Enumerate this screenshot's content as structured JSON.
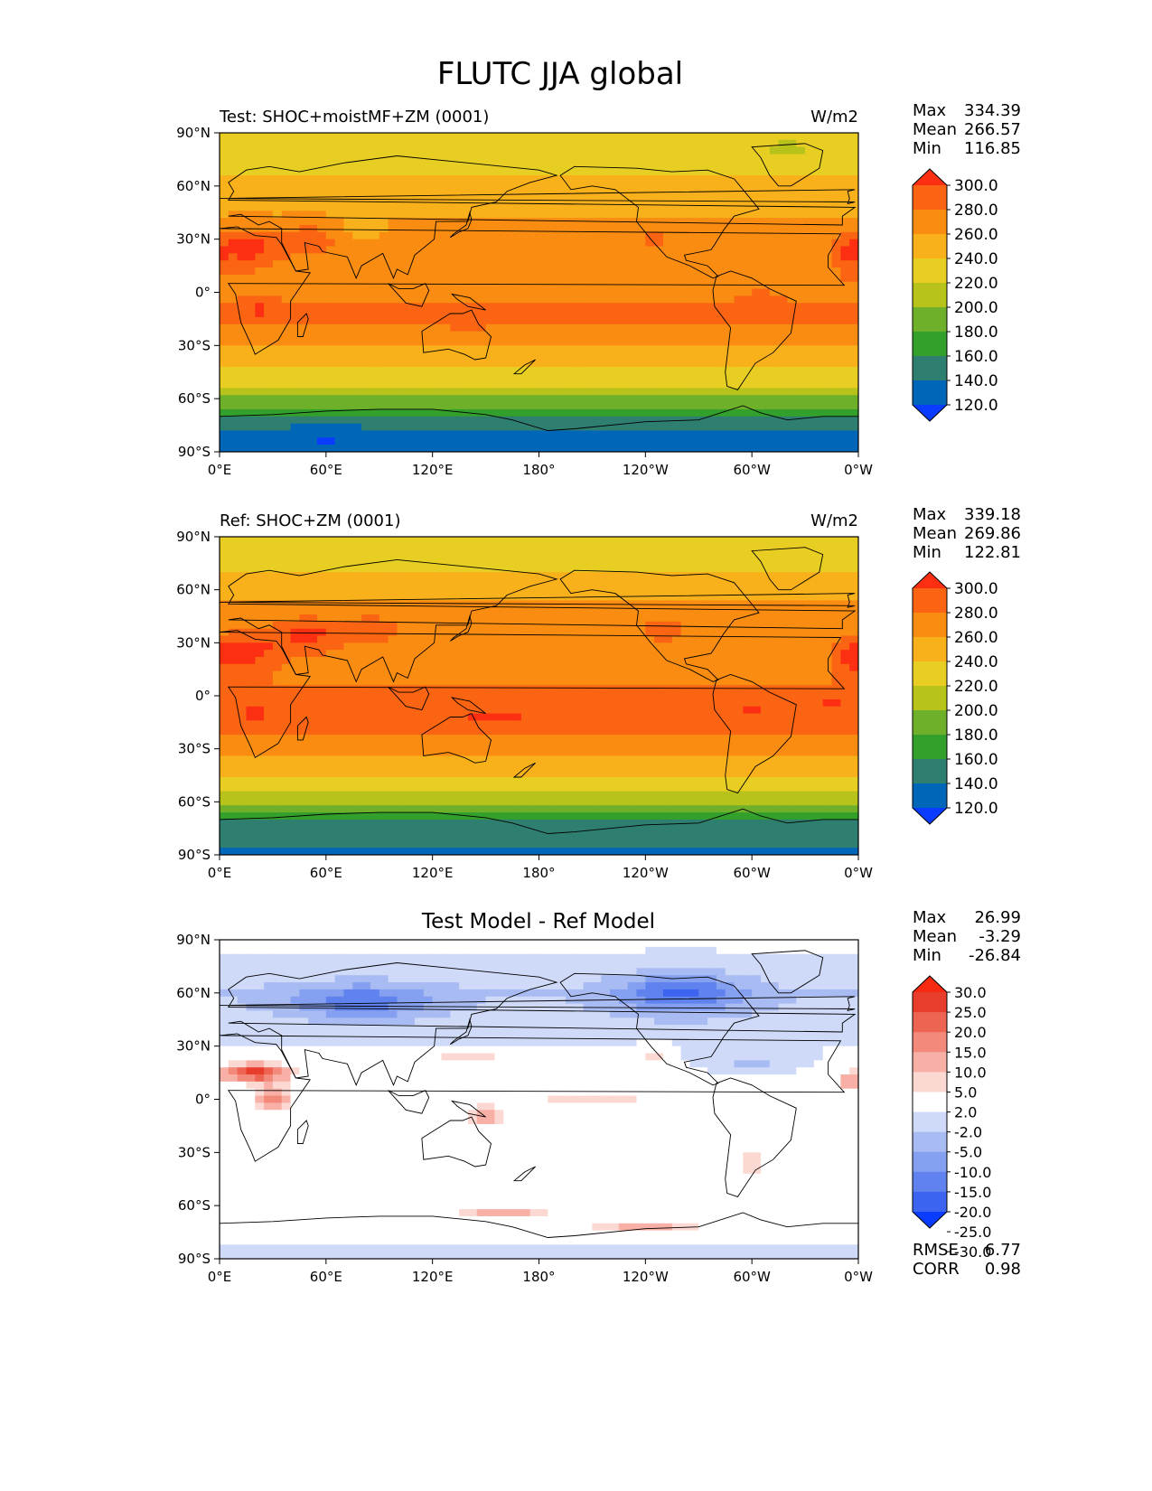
{
  "figure_title": "FLUTC JJA global",
  "colors": {
    "abs_levels": [
      "#0a3cff",
      "#0066b8",
      "#2f7f70",
      "#34a02c",
      "#6fb02a",
      "#b7c21a",
      "#e8ce22",
      "#f9b11b",
      "#fa8c12",
      "#fb6412",
      "#fd2f12"
    ],
    "diff_levels": [
      "#0a3cff",
      "#3c64f0",
      "#5f82ee",
      "#85a0f0",
      "#a8bbf3",
      "#cfdaf8",
      "#ffffff",
      "#fbd8d2",
      "#f8b0a6",
      "#f3897b",
      "#ee6452",
      "#e83c2c",
      "#f52a10"
    ],
    "coastline": "#000000"
  },
  "chart_data": [
    {
      "type": "heatmap",
      "panel": "test",
      "title": "Test: SHOC+moistMF+ZM (0001)",
      "units": "W/m2",
      "xticks": [
        "0°E",
        "60°E",
        "120°E",
        "180°",
        "120°W",
        "60°W",
        "0°W"
      ],
      "yticks": [
        "90°N",
        "60°N",
        "30°N",
        "0°",
        "30°S",
        "60°S",
        "90°S"
      ],
      "xlim": [
        0,
        360
      ],
      "ylim": [
        -90,
        90
      ],
      "stats": {
        "max_label": "Max",
        "max": "334.39",
        "mean_label": "Mean",
        "mean": "266.57",
        "min_label": "Min",
        "min": "116.85"
      },
      "colorbar": {
        "labels": [
          "300.0",
          "280.0",
          "260.0",
          "240.0",
          "220.0",
          "200.0",
          "180.0",
          "160.0",
          "140.0",
          "120.0"
        ],
        "extend": "both"
      },
      "zonal_profile": {
        "lat": [
          -90,
          -75,
          -70,
          -65,
          -58,
          -52,
          -45,
          -38,
          -30,
          -22,
          -15,
          -8,
          0,
          8,
          15,
          22,
          30,
          40,
          50,
          60,
          70,
          80,
          90
        ],
        "value": [
          135,
          142,
          162,
          182,
          205,
          225,
          238,
          250,
          262,
          275,
          282,
          280,
          278,
          276,
          272,
          270,
          268,
          262,
          255,
          248,
          236,
          230,
          228
        ]
      },
      "anomalies": [
        {
          "lon": 15,
          "lat": 25,
          "rlon": 18,
          "rlat": 10,
          "delta": 40
        },
        {
          "lon": 50,
          "lat": 30,
          "rlon": 15,
          "rlat": 8,
          "delta": 30
        },
        {
          "lon": 80,
          "lat": 35,
          "rlon": 12,
          "rlat": 6,
          "delta": -15
        },
        {
          "lon": 22,
          "lat": -10,
          "rlon": 8,
          "rlat": 6,
          "delta": 25
        },
        {
          "lon": 140,
          "lat": -20,
          "rlon": 6,
          "rlat": 4,
          "delta": 20
        },
        {
          "lon": 245,
          "lat": 32,
          "rlon": 8,
          "rlat": 6,
          "delta": 25
        },
        {
          "lon": 305,
          "lat": -8,
          "rlon": 10,
          "rlat": 6,
          "delta": 20
        },
        {
          "lon": 355,
          "lat": 22,
          "rlon": 8,
          "rlat": 10,
          "delta": 30
        },
        {
          "lon": 60,
          "lat": -82,
          "rlon": 25,
          "rlat": 4,
          "delta": -25
        },
        {
          "lon": 320,
          "lat": 80,
          "rlon": 8,
          "rlat": 5,
          "delta": -25
        }
      ]
    },
    {
      "type": "heatmap",
      "panel": "ref",
      "title": "Ref: SHOC+ZM (0001)",
      "units": "W/m2",
      "xticks": [
        "0°E",
        "60°E",
        "120°E",
        "180°",
        "120°W",
        "60°W",
        "0°W"
      ],
      "yticks": [
        "90°N",
        "60°N",
        "30°N",
        "0°",
        "30°S",
        "60°S",
        "90°S"
      ],
      "xlim": [
        0,
        360
      ],
      "ylim": [
        -90,
        90
      ],
      "stats": {
        "max_label": "Max",
        "max": "339.18",
        "mean_label": "Mean",
        "mean": "269.86",
        "min_label": "Min",
        "min": "122.81"
      },
      "colorbar": {
        "labels": [
          "300.0",
          "280.0",
          "260.0",
          "240.0",
          "220.0",
          "200.0",
          "180.0",
          "160.0",
          "140.0",
          "120.0"
        ],
        "extend": "both"
      },
      "zonal_profile": {
        "lat": [
          -90,
          -75,
          -70,
          -65,
          -58,
          -52,
          -45,
          -38,
          -30,
          -22,
          -15,
          -8,
          0,
          8,
          15,
          22,
          30,
          40,
          50,
          60,
          70,
          80,
          90
        ],
        "value": [
          138,
          145,
          165,
          185,
          208,
          228,
          240,
          252,
          265,
          278,
          285,
          283,
          281,
          279,
          275,
          272,
          272,
          268,
          262,
          255,
          240,
          232,
          230
        ]
      },
      "anomalies": [
        {
          "lon": 15,
          "lat": 25,
          "rlon": 18,
          "rlat": 10,
          "delta": 40
        },
        {
          "lon": 50,
          "lat": 35,
          "rlon": 20,
          "rlat": 10,
          "delta": 35
        },
        {
          "lon": 85,
          "lat": 38,
          "rlon": 15,
          "rlat": 7,
          "delta": 30
        },
        {
          "lon": 20,
          "lat": -10,
          "rlon": 10,
          "rlat": 6,
          "delta": 30
        },
        {
          "lon": 155,
          "lat": -12,
          "rlon": 20,
          "rlat": 5,
          "delta": 25
        },
        {
          "lon": 250,
          "lat": 38,
          "rlon": 10,
          "rlat": 7,
          "delta": 30
        },
        {
          "lon": 300,
          "lat": -8,
          "rlon": 10,
          "rlat": 6,
          "delta": 25
        },
        {
          "lon": 345,
          "lat": -5,
          "rlon": 12,
          "rlat": 5,
          "delta": 25
        },
        {
          "lon": 355,
          "lat": 22,
          "rlon": 8,
          "rlat": 10,
          "delta": 30
        }
      ]
    },
    {
      "type": "heatmap",
      "panel": "diff",
      "title": "Test Model - Ref Model",
      "units": "",
      "xticks": [
        "0°E",
        "60°E",
        "120°E",
        "180°",
        "120°W",
        "60°W",
        "0°W"
      ],
      "yticks": [
        "90°N",
        "60°N",
        "30°N",
        "0°",
        "30°S",
        "60°S",
        "90°S"
      ],
      "xlim": [
        0,
        360
      ],
      "ylim": [
        -90,
        90
      ],
      "stats": {
        "max_label": "Max",
        "max": "26.99",
        "mean_label": "Mean",
        "mean": "-3.29",
        "min_label": "Min",
        "min": "-26.84"
      },
      "colorbar": {
        "labels": [
          "30.0",
          "25.0",
          "20.0",
          "15.0",
          "10.0",
          "5.0",
          "2.0",
          "-2.0",
          "-5.0",
          "-10.0",
          "-15.0",
          "-20.0",
          "-25.0",
          "-30.0"
        ],
        "extend": "both"
      },
      "metrics": {
        "rmse_label": "RMSE",
        "rmse": "6.77",
        "corr_label": "CORR",
        "corr": "0.98"
      },
      "zonal_profile": {
        "lat": [
          -90,
          -75,
          -65,
          -45,
          -30,
          -15,
          0,
          15,
          30,
          45,
          60,
          75,
          90
        ],
        "value": [
          -6,
          -4,
          -2,
          -1,
          -3,
          -4,
          -1,
          -2,
          -5,
          -8,
          -10,
          -6,
          -4
        ]
      },
      "anomalies": [
        {
          "lon": 20,
          "lat": 15,
          "rlon": 18,
          "rlat": 5,
          "delta": 24
        },
        {
          "lon": 30,
          "lat": 0,
          "rlon": 10,
          "rlat": 8,
          "delta": 12
        },
        {
          "lon": 80,
          "lat": 55,
          "rlon": 40,
          "rlat": 10,
          "delta": -14
        },
        {
          "lon": 260,
          "lat": 60,
          "rlon": 35,
          "rlat": 12,
          "delta": -16
        },
        {
          "lon": 300,
          "lat": 20,
          "rlon": 30,
          "rlat": 8,
          "delta": -8
        },
        {
          "lon": 150,
          "lat": -10,
          "rlon": 12,
          "rlat": 6,
          "delta": 12
        },
        {
          "lon": 210,
          "lat": 0,
          "rlon": 30,
          "rlat": 3,
          "delta": 6
        },
        {
          "lon": 140,
          "lat": 25,
          "rlon": 25,
          "rlat": 4,
          "delta": 8
        },
        {
          "lon": 245,
          "lat": 25,
          "rlon": 6,
          "rlat": 6,
          "delta": 10
        },
        {
          "lon": 160,
          "lat": -65,
          "rlon": 25,
          "rlat": 3,
          "delta": 10
        },
        {
          "lon": 240,
          "lat": -72,
          "rlon": 40,
          "rlat": 3,
          "delta": 10
        },
        {
          "lon": 355,
          "lat": 10,
          "rlon": 6,
          "rlat": 5,
          "delta": 10
        },
        {
          "lon": 300,
          "lat": -35,
          "rlon": 4,
          "rlat": 10,
          "delta": 10
        }
      ]
    }
  ]
}
